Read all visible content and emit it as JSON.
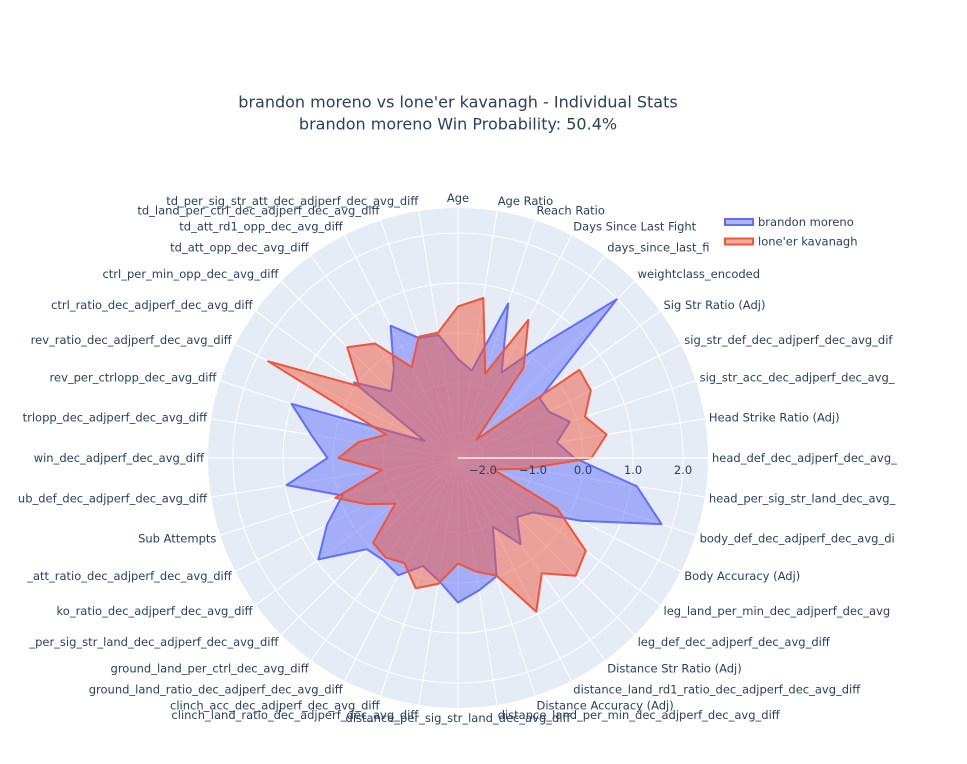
{
  "title": {
    "line1": "brandon moreno vs lone'er kavanagh - Individual Stats",
    "line2": "brandon moreno Win Probability: 50.4%"
  },
  "legend": {
    "items": [
      {
        "name": "brandon moreno",
        "color": "#636efa"
      },
      {
        "name": "lone'er kavanagh",
        "color": "#ef553b"
      }
    ]
  },
  "colors": {
    "paper_bg": "#ffffff",
    "plot_bg": "#e5ecf6",
    "grid": "#ffffff",
    "text": "#2a3f5f"
  },
  "chart_data": {
    "type": "area",
    "polar": true,
    "title": "brandon moreno vs lone'er kavanagh - Individual Stats / brandon moreno Win Probability: 50.4%",
    "categories": [
      "Age",
      "Age Ratio",
      "Reach Ratio",
      "Days Since Last Fight",
      "days_since_last_fi",
      "weightclass_encoded",
      "Sig Str Ratio (Adj)",
      "sig_str_def_dec_adjperf_dec_avg_dif",
      "sig_str_acc_dec_adjperf_dec_avg_",
      "Head Strike Ratio (Adj)",
      "head_def_dec_adjperf_dec_avg_",
      "head_per_sig_str_land_dec_avg_",
      "body_def_dec_adjperf_dec_avg_di",
      "Body Accuracy (Adj)",
      "leg_land_per_min_dec_adjperf_dec_avg",
      "leg_def_dec_adjperf_dec_avg_diff",
      "Distance Str Ratio (Adj)",
      "distance_land_rd1_ratio_dec_adjperf_dec_avg_diff",
      "Distance Accuracy (Adj)",
      "distance_land_per_min_dec_adjperf_dec_avg_diff",
      "distance_per_sig_str_land_dec_avg_diff",
      "clinch_land_ratio_dec_adjperf_dec_avg_diff",
      "clinch_acc_dec_adjperf_dec_avg_diff",
      "ground_land_ratio_dec_adjperf_dec_avg_diff",
      "ground_land_per_ctrl_dec_avg_diff",
      "_per_sig_str_land_dec_adjperf_dec_avg_diff",
      "ko_ratio_dec_adjperf_dec_avg_diff",
      "_att_ratio_dec_adjperf_dec_avg_diff",
      "Sub Attempts",
      "ub_def_dec_adjperf_dec_avg_diff",
      "win_dec_adjperf_dec_avg_diff",
      "trlopp_dec_adjperf_dec_avg_diff",
      "rev_per_ctrlopp_dec_avg_diff",
      "rev_ratio_dec_adjperf_dec_avg_diff",
      "ctrl_ratio_dec_adjperf_dec_avg_diff",
      "ctrl_per_min_opp_dec_avg_diff",
      "td_att_opp_dec_avg_diff",
      "td_att_rd1_opp_dec_avg_diff",
      "td_land_per_ctrl_dec_adjperf_dec_avg_diff",
      "td_per_sig_str_att_dec_adjperf_dec_avg_diff"
    ],
    "series": [
      {
        "name": "brandon moreno",
        "color": "#636efa",
        "values": [
          -0.52,
          -0.73,
          0.75,
          -0.58,
          0.26,
          1.99,
          -0.48,
          -0.46,
          -0.15,
          -0.5,
          -0.17,
          1.12,
          1.78,
          0.27,
          -0.65,
          -0.83,
          -0.37,
          -0.96,
          -0.01,
          0.18,
          0.39,
          -0.02,
          -0.23,
          0.13,
          0.03,
          0.08,
          0.95,
          0.44,
          -0.07,
          0.97,
          0.11,
          0.47,
          1.0,
          -1.75,
          0.07,
          -0.61,
          -0.32,
          0.47,
          0.02,
          -0.01
        ]
      },
      {
        "name": "lone'er kavanagh",
        "color": "#ef553b",
        "values": [
          0.53,
          0.74,
          -0.73,
          0.6,
          -0.27,
          -1.98,
          0.5,
          0.48,
          0.17,
          0.51,
          0.17,
          -1.12,
          -1.76,
          -0.27,
          0.66,
          0.83,
          0.35,
          0.95,
          -0.03,
          -0.2,
          -0.39,
          0.05,
          0.24,
          -0.14,
          -0.04,
          -0.1,
          -0.95,
          -0.46,
          0.08,
          -0.96,
          -0.11,
          -0.48,
          -0.99,
          1.76,
          -0.06,
          0.63,
          0.33,
          -0.46,
          0.05,
          0.04
        ]
      }
    ],
    "radial_axis": {
      "range": [
        -2.5,
        2.5
      ],
      "ticks": [
        -2,
        -1,
        0,
        1,
        2
      ],
      "tick_labels": [
        "−2.0",
        "−1.0",
        "0.0",
        "1.0",
        "2.0"
      ]
    },
    "angular_axis": {
      "direction": "clockwise",
      "rotation": 90
    },
    "grid": true,
    "legend_position": "top-right"
  }
}
